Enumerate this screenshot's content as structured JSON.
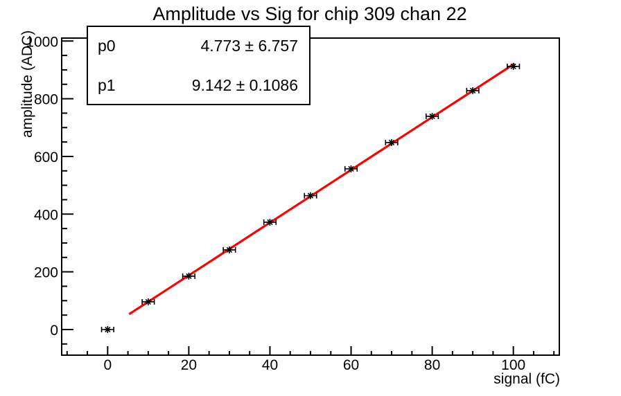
{
  "title": "Amplitude vs Sig for chip 309 chan 22",
  "stats_box": {
    "rows": [
      {
        "name": "p0",
        "value": "4.773 ± 6.757"
      },
      {
        "name": "p1",
        "value": "9.142 ± 0.1086"
      }
    ]
  },
  "axes": {
    "x": {
      "title": "signal (fC)",
      "major_ticks": [
        0,
        20,
        40,
        60,
        80,
        100
      ],
      "minor_step": 5
    },
    "y": {
      "title": "amplitude (ADC)",
      "major_ticks": [
        0,
        200,
        400,
        600,
        800,
        1000
      ],
      "minor_step": 50
    }
  },
  "colors": {
    "fit_line": "#ff0000",
    "marker": "#000000",
    "axis": "#000000",
    "background": "#ffffff"
  },
  "chart_data": {
    "type": "scatter",
    "title": "Amplitude vs Sig for chip 309 chan 22",
    "xlabel": "signal (fC)",
    "ylabel": "amplitude (ADC)",
    "x": [
      0,
      10,
      20,
      30,
      40,
      50,
      60,
      70,
      80,
      90,
      100
    ],
    "y": [
      0,
      96,
      185,
      276,
      372,
      464,
      557,
      648,
      739,
      828,
      912
    ],
    "xerr": 1.5,
    "marker_style": "asterisk-with-x-error-bars",
    "xlim": [
      -11.33,
      111.33
    ],
    "ylim": [
      -88.8,
      1010.2
    ],
    "x_major_ticks": [
      0,
      20,
      40,
      60,
      80,
      100
    ],
    "x_minor_step": 5,
    "y_major_ticks": [
      0,
      200,
      400,
      600,
      800,
      1000
    ],
    "y_minor_step": 50,
    "grid": false,
    "legend_position": "none",
    "fit": {
      "type": "linear",
      "p0": 4.773,
      "p0_err": 6.757,
      "p1": 9.142,
      "p1_err": 0.1086,
      "draw_range": [
        5.3,
        100.3
      ],
      "color": "#ff0000"
    }
  }
}
